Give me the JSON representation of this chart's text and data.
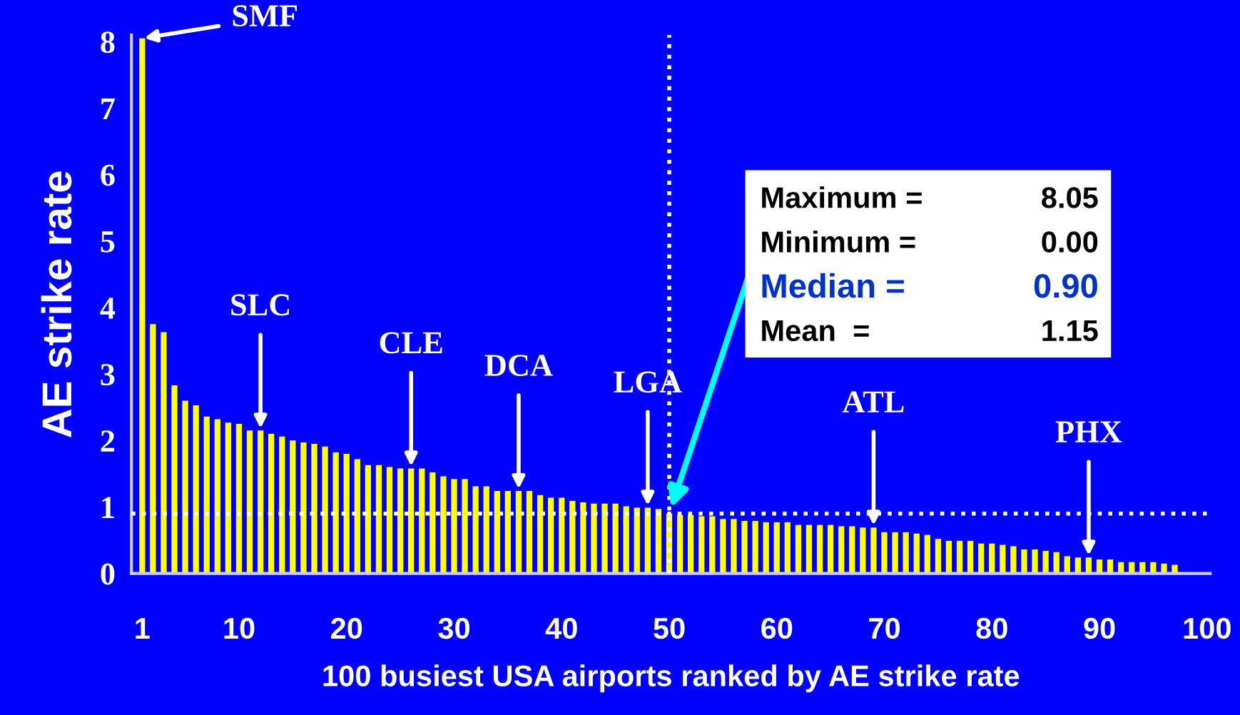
{
  "chart_data": {
    "type": "bar",
    "xlabel": "100 busiest USA airports ranked by AE strike rate",
    "ylabel": "AE strike rate",
    "x": [
      1,
      2,
      3,
      4,
      5,
      6,
      7,
      8,
      9,
      10,
      11,
      12,
      13,
      14,
      15,
      16,
      17,
      18,
      19,
      20,
      21,
      22,
      23,
      24,
      25,
      26,
      27,
      28,
      29,
      30,
      31,
      32,
      33,
      34,
      35,
      36,
      37,
      38,
      39,
      40,
      41,
      42,
      43,
      44,
      45,
      46,
      47,
      48,
      49,
      50,
      51,
      52,
      53,
      54,
      55,
      56,
      57,
      58,
      59,
      60,
      61,
      62,
      63,
      64,
      65,
      66,
      67,
      68,
      69,
      70,
      71,
      72,
      73,
      74,
      75,
      76,
      77,
      78,
      79,
      80,
      81,
      82,
      83,
      84,
      85,
      86,
      87,
      88,
      89,
      90,
      91,
      92,
      93,
      94,
      95,
      96,
      97,
      98,
      99,
      100
    ],
    "values": [
      8.05,
      3.75,
      3.63,
      2.83,
      2.6,
      2.53,
      2.36,
      2.32,
      2.27,
      2.25,
      2.15,
      2.15,
      2.1,
      2.06,
      2.0,
      1.97,
      1.95,
      1.91,
      1.82,
      1.8,
      1.72,
      1.63,
      1.63,
      1.6,
      1.58,
      1.58,
      1.58,
      1.52,
      1.46,
      1.42,
      1.42,
      1.31,
      1.31,
      1.24,
      1.24,
      1.24,
      1.24,
      1.18,
      1.14,
      1.14,
      1.09,
      1.07,
      1.05,
      1.05,
      1.05,
      1.01,
      0.99,
      0.99,
      0.97,
      0.9,
      0.88,
      0.88,
      0.86,
      0.86,
      0.82,
      0.82,
      0.79,
      0.79,
      0.77,
      0.77,
      0.77,
      0.73,
      0.73,
      0.73,
      0.73,
      0.71,
      0.71,
      0.69,
      0.69,
      0.62,
      0.62,
      0.62,
      0.6,
      0.58,
      0.52,
      0.49,
      0.49,
      0.49,
      0.45,
      0.45,
      0.43,
      0.41,
      0.36,
      0.36,
      0.34,
      0.32,
      0.26,
      0.24,
      0.24,
      0.21,
      0.21,
      0.17,
      0.17,
      0.17,
      0.17,
      0.15,
      0.13,
      0.0,
      0.0,
      0.0
    ],
    "color": "#ffff00",
    "xlim": [
      0,
      100.3
    ],
    "xticks": [
      1,
      10,
      20,
      30,
      40,
      50,
      60,
      70,
      80,
      90,
      100
    ],
    "ylim": [
      0,
      8.1
    ],
    "yticks": [
      0,
      1,
      2,
      3,
      4,
      5,
      6,
      7,
      8
    ],
    "grid": false,
    "legend": false,
    "ref_lines": [
      {
        "axis": "y",
        "value": 0.9,
        "color": "#ffffff",
        "line_style": "dotted"
      },
      {
        "axis": "x",
        "value": 50,
        "color": "#ffffff",
        "line_style": "dotted"
      }
    ],
    "annotations": [
      {
        "text": "SMF",
        "x": 1,
        "y": 8.05
      },
      {
        "text": "SLC",
        "x": 12,
        "y": 2.15
      },
      {
        "text": "CLE",
        "x": 26,
        "y": 1.58
      },
      {
        "text": "DCA",
        "x": 36,
        "y": 1.24
      },
      {
        "text": "LGA",
        "x": 48,
        "y": 0.99
      },
      {
        "text": "ATL",
        "x": 69,
        "y": 0.69
      },
      {
        "text": "PHX",
        "x": 89,
        "y": 0.24
      },
      "Maximum =",
      "8.05",
      "Minimum =",
      "0.00",
      {
        "text": "Median =",
        "x": 50,
        "y": 0.9
      },
      "0.90",
      "Mean  =",
      "1.15"
    ]
  }
}
